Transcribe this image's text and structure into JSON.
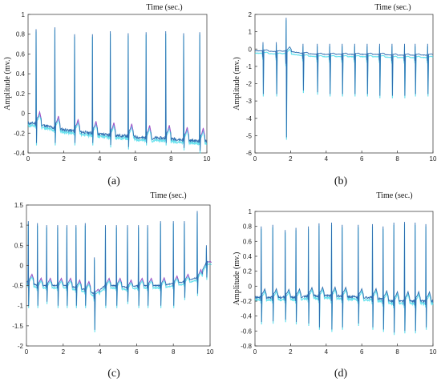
{
  "colors": {
    "trace_primary": "#2f6fb2",
    "trace_dark": "#3b3f9e",
    "trace_cyan": "#3ad8e8",
    "trace_magenta": "#d040d0",
    "axis": "#444444"
  },
  "chart_data": [
    {
      "type": "line",
      "panel_label": "(a)",
      "title": "Time (sec.)",
      "ylabel": "Amplitude (mv.)",
      "xlabel": "",
      "xlim": [
        0,
        10
      ],
      "ylim": [
        -0.4,
        1.0
      ],
      "xticks": [
        0,
        2,
        4,
        6,
        8,
        10
      ],
      "yticks": [
        -0.4,
        -0.2,
        0,
        0.2,
        0.4,
        0.6,
        0.8,
        1
      ],
      "ytick_labels": [
        "-0.4",
        "-0.2",
        "0",
        "0.2",
        "0.4",
        "0.6",
        "0.8",
        "1"
      ],
      "grid": false,
      "series": [
        {
          "beats_x": [
            0.45,
            1.5,
            2.6,
            3.6,
            4.6,
            5.6,
            6.6,
            7.7,
            8.7,
            9.6
          ],
          "r_peak": [
            0.85,
            0.87,
            0.8,
            0.8,
            0.83,
            0.81,
            0.82,
            0.83,
            0.81,
            0.82
          ],
          "s_dip": [
            -0.3,
            -0.3,
            -0.3,
            -0.3,
            -0.32,
            -0.34,
            -0.3,
            -0.3,
            -0.35,
            -0.38
          ],
          "baseline": [
            -0.1,
            -0.15,
            -0.18,
            -0.2,
            -0.22,
            -0.23,
            -0.25,
            -0.25,
            -0.27,
            -0.28
          ]
        }
      ]
    },
    {
      "type": "line",
      "panel_label": "(b)",
      "title": "Time (sec.)",
      "ylabel": "Amplitude (mv.)",
      "xlabel": "",
      "xlim": [
        0,
        10
      ],
      "ylim": [
        -6,
        2
      ],
      "xticks": [
        0,
        2,
        4,
        6,
        8,
        10
      ],
      "yticks": [
        -6,
        -5,
        -4,
        -3,
        -2,
        -1,
        0,
        1,
        2
      ],
      "ytick_labels": [
        "-6",
        "-5",
        "-4",
        "-3",
        "-2",
        "-1",
        "0",
        "1",
        "2"
      ],
      "grid": false,
      "series": [
        {
          "beats_x": [
            0.45,
            1.2,
            1.75,
            2.7,
            3.5,
            4.2,
            4.9,
            5.6,
            6.3,
            7.0,
            7.7,
            8.4,
            9.0,
            9.7
          ],
          "r_peak": [
            0.4,
            0.4,
            1.8,
            0.3,
            0.3,
            0.3,
            0.3,
            0.3,
            0.3,
            0.3,
            0.3,
            0.3,
            0.3,
            0.3
          ],
          "s_dip": [
            -2.6,
            -2.6,
            -5.1,
            -2.4,
            -2.5,
            -2.6,
            -2.6,
            -2.6,
            -2.6,
            -2.7,
            -2.7,
            -2.7,
            -2.6,
            -2.6
          ],
          "baseline": [
            -0.1,
            -0.15,
            -0.1,
            -0.25,
            -0.3,
            -0.3,
            -0.3,
            -0.3,
            -0.3,
            -0.3,
            -0.35,
            -0.35,
            -0.35,
            -0.35
          ]
        }
      ]
    },
    {
      "type": "line",
      "panel_label": "(c)",
      "title": "Time (sec.)",
      "ylabel": "",
      "xlabel": "",
      "xlim": [
        0,
        10
      ],
      "ylim": [
        -2,
        1.5
      ],
      "xticks": [
        0,
        2,
        4,
        6,
        8,
        10
      ],
      "yticks": [
        -2,
        -1.5,
        -1,
        -0.5,
        0,
        0.5,
        1,
        1.5
      ],
      "ytick_labels": [
        "-2",
        "-1.5",
        "-1",
        "-0.5",
        "0",
        "0.5",
        "1",
        "1.5"
      ],
      "grid": false,
      "series": [
        {
          "beats_x": [
            0.1,
            0.6,
            1.1,
            1.7,
            2.2,
            2.7,
            3.2,
            3.7,
            4.3,
            4.9,
            5.5,
            6.1,
            6.6,
            7.3,
            8.0,
            8.6,
            9.3,
            9.8
          ],
          "r_peak": [
            1.1,
            1.05,
            1.0,
            1.0,
            1.0,
            1.0,
            1.05,
            0.2,
            1.0,
            1.0,
            1.0,
            1.0,
            1.0,
            1.1,
            1.1,
            1.1,
            1.35,
            0.5
          ],
          "s_dip": [
            -1.0,
            -1.0,
            -0.9,
            -1.0,
            -1.0,
            -1.0,
            -1.0,
            -1.6,
            -1.0,
            -1.0,
            -0.9,
            -1.0,
            -1.0,
            -1.0,
            -1.0,
            -0.8,
            -0.7,
            -0.3
          ],
          "baseline": [
            -0.4,
            -0.5,
            -0.5,
            -0.5,
            -0.5,
            -0.55,
            -0.6,
            -0.7,
            -0.5,
            -0.5,
            -0.55,
            -0.5,
            -0.5,
            -0.5,
            -0.45,
            -0.4,
            -0.3,
            0.05
          ]
        }
      ]
    },
    {
      "type": "line",
      "panel_label": "(d)",
      "title": "Time (sec.)",
      "ylabel": "Amplitude (mv.)",
      "xlabel": "",
      "xlim": [
        0,
        10
      ],
      "ylim": [
        -0.8,
        1.0
      ],
      "xticks": [
        0,
        2,
        4,
        6,
        8,
        10
      ],
      "yticks": [
        -0.8,
        -0.6,
        -0.4,
        -0.2,
        0,
        0.2,
        0.4,
        0.6,
        0.8,
        1
      ],
      "ytick_labels": [
        "-0.8",
        "-0.6",
        "-0.4",
        "-0.2",
        "0",
        "0.2",
        "0.4",
        "0.6",
        "0.8",
        "1"
      ],
      "grid": false,
      "series": [
        {
          "beats_x": [
            0.35,
            1.0,
            1.7,
            2.3,
            3.0,
            3.6,
            4.3,
            4.9,
            5.8,
            6.6,
            7.2,
            7.8,
            8.4,
            9.0,
            9.6
          ],
          "r_peak": [
            0.8,
            0.82,
            0.75,
            0.78,
            0.8,
            0.84,
            0.85,
            0.82,
            0.82,
            0.83,
            0.8,
            0.85,
            0.86,
            0.85,
            0.83
          ],
          "s_dip": [
            -0.48,
            -0.47,
            -0.45,
            -0.48,
            -0.5,
            -0.55,
            -0.58,
            -0.55,
            -0.5,
            -0.55,
            -0.58,
            -0.62,
            -0.6,
            -0.6,
            -0.55
          ],
          "baseline": [
            -0.15,
            -0.15,
            -0.15,
            -0.15,
            -0.13,
            -0.13,
            -0.13,
            -0.13,
            -0.15,
            -0.15,
            -0.18,
            -0.2,
            -0.2,
            -0.2,
            -0.2
          ]
        }
      ]
    }
  ]
}
